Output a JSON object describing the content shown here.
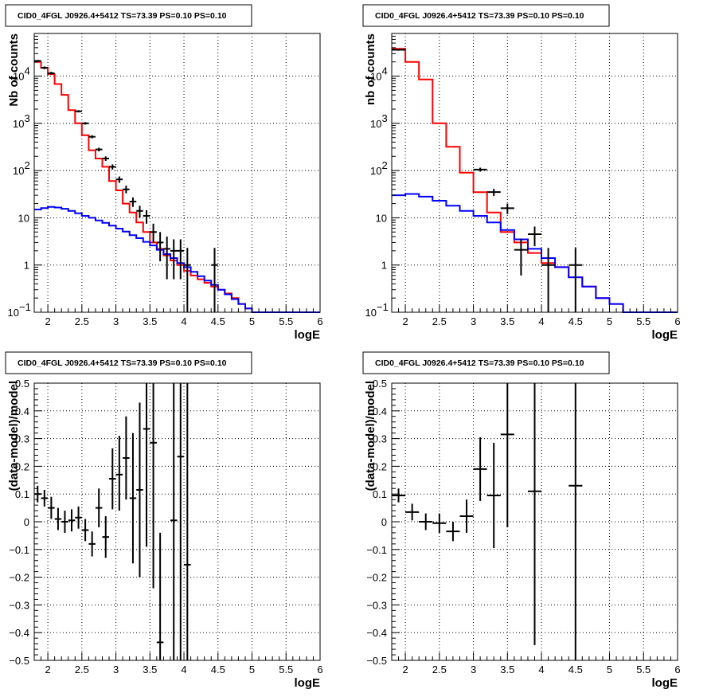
{
  "colors": {
    "model_total": "#ff0000",
    "model_background": "#0000ff",
    "data": "#000000"
  },
  "chart_data": [
    {
      "id": "spectrum-left",
      "type": "line",
      "title": "CID0_4FGL J0926.4+5412 TS=73.39 PS=0.10 PS=0.10",
      "xlabel": "logE",
      "ylabel": "Nb of counts",
      "xlim": [
        1.8,
        6.0
      ],
      "ylim": [
        0.1,
        80000
      ],
      "yscale": "log",
      "grid": true,
      "x_ticks": [
        "2",
        "2.5",
        "3",
        "3.5",
        "4",
        "4.5",
        "5",
        "5.5",
        "6"
      ],
      "y_ticks": [
        {
          "value": 0.1,
          "base": "10",
          "exp": "−1"
        },
        {
          "value": 1,
          "label": "1"
        },
        {
          "value": 10,
          "label": "10"
        },
        {
          "value": 100,
          "base": "10",
          "exp": "2"
        },
        {
          "value": 1000,
          "base": "10",
          "exp": "3"
        },
        {
          "value": 10000,
          "base": "10",
          "exp": "4"
        }
      ],
      "bin_edges": [
        1.8,
        1.9,
        2.0,
        2.1,
        2.2,
        2.3,
        2.4,
        2.5,
        2.6,
        2.7,
        2.8,
        2.9,
        3.0,
        3.1,
        3.2,
        3.3,
        3.4,
        3.5,
        3.6,
        3.7,
        3.8,
        3.9,
        4.0,
        4.1,
        4.2,
        4.3,
        4.4,
        4.5,
        4.6,
        4.7,
        4.8,
        4.9,
        5.0,
        5.1,
        5.2,
        5.3,
        5.4,
        5.5,
        5.6,
        5.7,
        5.8,
        5.9,
        6.0
      ],
      "series": [
        {
          "role": "model_total",
          "values": [
            20000,
            15000,
            11000,
            6800,
            4000,
            1900,
            1000,
            560,
            270,
            180,
            120,
            60,
            38,
            20,
            13,
            8,
            5,
            3,
            2.2,
            1.6,
            1.25,
            1,
            0.75,
            0.6,
            0.5,
            0.42,
            0.35,
            0.3,
            0.25,
            0.2,
            0.15,
            0.12,
            0.1,
            0.1,
            0.1,
            0.1,
            0.1,
            0.1,
            0.1,
            0.1,
            0.1,
            0.1
          ]
        },
        {
          "role": "model_background",
          "values": [
            15,
            16,
            17,
            16.5,
            15.5,
            14,
            12.5,
            11,
            10,
            8.8,
            7.8,
            6.8,
            5.9,
            5.1,
            4.3,
            3.7,
            3.1,
            2.6,
            2.1,
            1.7,
            1.4,
            1.1,
            0.9,
            0.72,
            0.58,
            0.47,
            0.38,
            0.3,
            0.24,
            0.19,
            0.15,
            0.12,
            0.1,
            0.1,
            0.1,
            0.1,
            0.1,
            0.1,
            0.1,
            0.1,
            0.1,
            0.1
          ]
        },
        {
          "role": "data",
          "points": [
            {
              "x": 1.85,
              "y": 21000,
              "lo": 20000,
              "hi": 22000
            },
            {
              "x": 1.95,
              "y": 15000,
              "lo": 14000,
              "hi": 16000
            },
            {
              "x": 2.05,
              "y": 11500,
              "lo": 10700,
              "hi": 12300
            },
            {
              "x": 2.45,
              "y": 1800,
              "lo": 1700,
              "hi": 1900
            },
            {
              "x": 2.55,
              "y": 1000,
              "lo": 940,
              "hi": 1060
            },
            {
              "x": 2.65,
              "y": 520,
              "lo": 480,
              "hi": 560
            },
            {
              "x": 2.75,
              "y": 280,
              "lo": 255,
              "hi": 305
            },
            {
              "x": 2.85,
              "y": 180,
              "lo": 160,
              "hi": 200
            },
            {
              "x": 2.95,
              "y": 120,
              "lo": 105,
              "hi": 135
            },
            {
              "x": 3.05,
              "y": 65,
              "lo": 55,
              "hi": 75
            },
            {
              "x": 3.15,
              "y": 40,
              "lo": 33,
              "hi": 48
            },
            {
              "x": 3.25,
              "y": 22,
              "lo": 17,
              "hi": 27
            },
            {
              "x": 3.35,
              "y": 14,
              "lo": 10,
              "hi": 18
            },
            {
              "x": 3.45,
              "y": 11,
              "lo": 7.5,
              "hi": 14.5
            },
            {
              "x": 3.55,
              "y": 5,
              "lo": 3,
              "hi": 7.5
            },
            {
              "x": 3.65,
              "y": 3,
              "lo": 1.2,
              "hi": 5
            },
            {
              "x": 3.75,
              "y": 2.2,
              "lo": 0.5,
              "hi": 4
            },
            {
              "x": 3.85,
              "y": 2,
              "lo": 0.5,
              "hi": 3.5
            },
            {
              "x": 3.95,
              "y": 2,
              "lo": 0.5,
              "hi": 3.5
            },
            {
              "x": 4.05,
              "y": 1,
              "lo": 0.1,
              "hi": 2.3
            },
            {
              "x": 4.45,
              "y": 1,
              "lo": 0.1,
              "hi": 2.3
            }
          ]
        }
      ]
    },
    {
      "id": "spectrum-right",
      "type": "line",
      "title": "CID0_4FGL J0926.4+5412 TS=73.39 PS=0.10 PS=0.10",
      "xlabel": "logE",
      "ylabel": "nb of counts",
      "xlim": [
        1.8,
        6.0
      ],
      "ylim": [
        0.1,
        80000
      ],
      "yscale": "log",
      "grid": true,
      "x_ticks": [
        "2",
        "2.5",
        "3",
        "3.5",
        "4",
        "4.5",
        "5",
        "5.5",
        "6"
      ],
      "y_ticks": [
        {
          "value": 0.1,
          "base": "10",
          "exp": "−1"
        },
        {
          "value": 1,
          "label": "1"
        },
        {
          "value": 10,
          "label": "10"
        },
        {
          "value": 100,
          "base": "10",
          "exp": "2"
        },
        {
          "value": 1000,
          "base": "10",
          "exp": "3"
        },
        {
          "value": 10000,
          "base": "10",
          "exp": "4"
        }
      ],
      "bin_edges": [
        1.8,
        2.0,
        2.2,
        2.4,
        2.6,
        2.8,
        3.0,
        3.2,
        3.4,
        3.6,
        3.8,
        4.0,
        4.2,
        4.4,
        4.6,
        4.8,
        5.0,
        5.2,
        5.4,
        5.6,
        5.8,
        6.0
      ],
      "series": [
        {
          "role": "model_total",
          "values": [
            38000,
            20000,
            8500,
            1000,
            320,
            90,
            35,
            13,
            5,
            3,
            1.8,
            1.1,
            0.9,
            0.55,
            0.35,
            0.2,
            0.15,
            0.1,
            0.1,
            0.1,
            0.1
          ]
        },
        {
          "role": "model_background",
          "values": [
            30,
            32,
            28,
            23,
            18,
            14,
            11,
            8,
            5.5,
            3.5,
            2.2,
            1.4,
            0.9,
            0.55,
            0.35,
            0.2,
            0.15,
            0.1,
            0.1,
            0.1,
            0.1
          ]
        },
        {
          "role": "data",
          "points": [
            {
              "x": 1.9,
              "y": 36000,
              "lo": 34500,
              "hi": 37500
            },
            {
              "x": 3.1,
              "y": 105,
              "lo": 95,
              "hi": 115
            },
            {
              "x": 3.3,
              "y": 35,
              "lo": 29,
              "hi": 41
            },
            {
              "x": 3.5,
              "y": 16,
              "lo": 12,
              "hi": 20
            },
            {
              "x": 3.7,
              "y": 2.1,
              "lo": 0.6,
              "hi": 3.6
            },
            {
              "x": 3.9,
              "y": 4.5,
              "lo": 2.5,
              "hi": 6.5
            },
            {
              "x": 4.1,
              "y": 1,
              "lo": 0.1,
              "hi": 2.3
            },
            {
              "x": 4.5,
              "y": 1,
              "lo": 0.1,
              "hi": 2.3
            }
          ]
        }
      ]
    },
    {
      "id": "residual-left",
      "type": "scatter",
      "title": "CID0_4FGL J0926.4+5412 TS=73.39 PS=0.10 PS=0.10",
      "xlabel": "logE",
      "ylabel": "(data-model)/model",
      "xlim": [
        1.8,
        6.0
      ],
      "ylim": [
        -0.5,
        0.5
      ],
      "yscale": "linear",
      "grid": true,
      "x_ticks": [
        "2",
        "2.5",
        "3",
        "3.5",
        "4",
        "4.5",
        "5",
        "5.5",
        "6"
      ],
      "y_ticks": [
        "−0.5",
        "−0.4",
        "−0.3",
        "−0.2",
        "−0.1",
        "0",
        "0.1",
        "0.2",
        "0.3",
        "0.4",
        "0.5"
      ],
      "series": [
        {
          "role": "data",
          "points": [
            {
              "x": 1.85,
              "y": 0.1,
              "lo": 0.07,
              "hi": 0.13,
              "hw": 0.05
            },
            {
              "x": 1.95,
              "y": 0.085,
              "lo": 0.055,
              "hi": 0.115,
              "hw": 0.05
            },
            {
              "x": 2.05,
              "y": 0.05,
              "lo": 0.01,
              "hi": 0.09,
              "hw": 0.05
            },
            {
              "x": 2.15,
              "y": 0.01,
              "lo": -0.03,
              "hi": 0.05,
              "hw": 0.05
            },
            {
              "x": 2.25,
              "y": 0.0,
              "lo": -0.04,
              "hi": 0.04,
              "hw": 0.05
            },
            {
              "x": 2.35,
              "y": 0.005,
              "lo": -0.035,
              "hi": 0.045,
              "hw": 0.05
            },
            {
              "x": 2.45,
              "y": 0.015,
              "lo": -0.025,
              "hi": 0.055,
              "hw": 0.05
            },
            {
              "x": 2.55,
              "y": -0.03,
              "lo": -0.07,
              "hi": 0.01,
              "hw": 0.05
            },
            {
              "x": 2.65,
              "y": -0.08,
              "lo": -0.125,
              "hi": -0.035,
              "hw": 0.05
            },
            {
              "x": 2.75,
              "y": 0.05,
              "lo": -0.02,
              "hi": 0.12,
              "hw": 0.05
            },
            {
              "x": 2.85,
              "y": -0.055,
              "lo": -0.13,
              "hi": 0.02,
              "hw": 0.05
            },
            {
              "x": 2.95,
              "y": 0.155,
              "lo": 0.045,
              "hi": 0.265,
              "hw": 0.05
            },
            {
              "x": 3.05,
              "y": 0.17,
              "lo": 0.04,
              "hi": 0.31,
              "hw": 0.05
            },
            {
              "x": 3.15,
              "y": 0.23,
              "lo": 0.08,
              "hi": 0.38,
              "hw": 0.05
            },
            {
              "x": 3.25,
              "y": 0.085,
              "lo": -0.15,
              "hi": 0.32,
              "hw": 0.05
            },
            {
              "x": 3.35,
              "y": 0.115,
              "lo": -0.2,
              "hi": 0.43,
              "hw": 0.05
            },
            {
              "x": 3.45,
              "y": 0.335,
              "lo": -0.09,
              "hi": 0.5,
              "hw": 0.05
            },
            {
              "x": 3.55,
              "y": 0.285,
              "lo": -0.24,
              "hi": 0.5,
              "hw": 0.05
            },
            {
              "x": 3.65,
              "y": -0.435,
              "lo": -0.5,
              "hi": -0.04,
              "hw": 0.05
            },
            {
              "x": 3.85,
              "y": 0.005,
              "lo": -0.5,
              "hi": 0.5,
              "hw": 0.05
            },
            {
              "x": 3.95,
              "y": 0.235,
              "lo": -0.5,
              "hi": 0.5,
              "hw": 0.05
            },
            {
              "x": 4.05,
              "y": -0.155,
              "lo": -0.5,
              "hi": 0.5,
              "hw": 0.05
            }
          ]
        }
      ]
    },
    {
      "id": "residual-right",
      "type": "scatter",
      "title": "CID0_4FGL J0926.4+5412 TS=73.39 PS=0.10 PS=0.10",
      "xlabel": "logE",
      "ylabel": "(data-model)/model",
      "xlim": [
        1.8,
        6.0
      ],
      "ylim": [
        -0.5,
        0.5
      ],
      "yscale": "linear",
      "grid": true,
      "x_ticks": [
        "2",
        "2.5",
        "3",
        "3.5",
        "4",
        "4.5",
        "5",
        "5.5",
        "6"
      ],
      "y_ticks": [
        "−0.5",
        "−0.4",
        "−0.3",
        "−0.2",
        "−0.1",
        "0",
        "0.1",
        "0.2",
        "0.3",
        "0.4",
        "0.5"
      ],
      "series": [
        {
          "role": "data",
          "points": [
            {
              "x": 1.9,
              "y": 0.095,
              "lo": 0.07,
              "hi": 0.12,
              "hw": 0.1
            },
            {
              "x": 2.1,
              "y": 0.035,
              "lo": 0.005,
              "hi": 0.065,
              "hw": 0.1
            },
            {
              "x": 2.3,
              "y": 0.0,
              "lo": -0.03,
              "hi": 0.03,
              "hw": 0.1
            },
            {
              "x": 2.5,
              "y": -0.005,
              "lo": -0.04,
              "hi": 0.03,
              "hw": 0.1
            },
            {
              "x": 2.7,
              "y": -0.035,
              "lo": -0.07,
              "hi": 0.0,
              "hw": 0.1
            },
            {
              "x": 2.9,
              "y": 0.02,
              "lo": -0.04,
              "hi": 0.08,
              "hw": 0.1
            },
            {
              "x": 3.1,
              "y": 0.19,
              "lo": 0.075,
              "hi": 0.305,
              "hw": 0.1
            },
            {
              "x": 3.3,
              "y": 0.095,
              "lo": -0.095,
              "hi": 0.285,
              "hw": 0.1
            },
            {
              "x": 3.5,
              "y": 0.315,
              "lo": -0.02,
              "hi": 0.5,
              "hw": 0.1
            },
            {
              "x": 3.9,
              "y": 0.11,
              "lo": -0.445,
              "hi": 0.5,
              "hw": 0.1
            },
            {
              "x": 4.5,
              "y": 0.13,
              "lo": -0.5,
              "hi": 0.5,
              "hw": 0.1
            }
          ]
        }
      ]
    }
  ]
}
